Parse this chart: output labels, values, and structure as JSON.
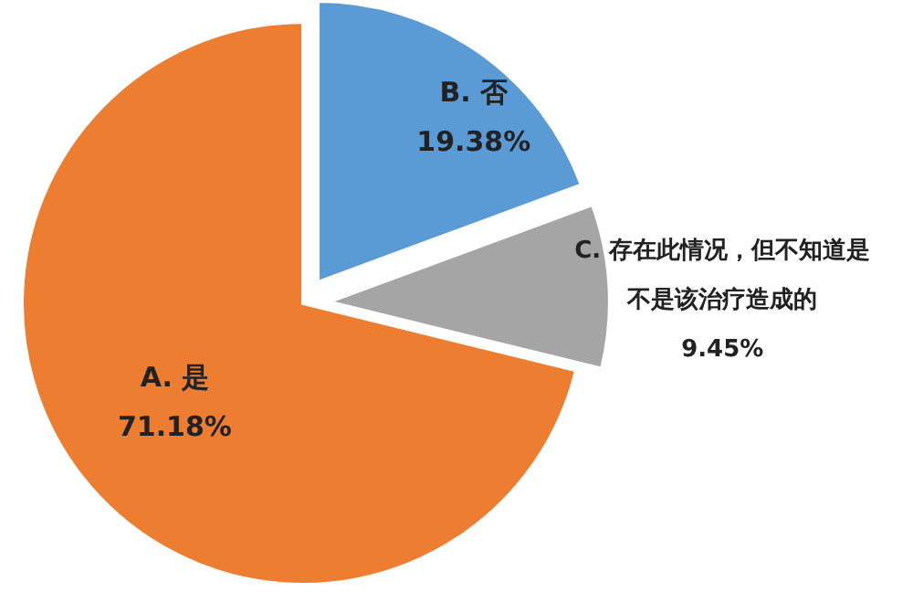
{
  "chart_data": {
    "type": "pie",
    "categories": [
      "A. 是",
      "B. 否",
      "C. 存在此情况，但不知道是不是该治疗造成的"
    ],
    "values": [
      71.18,
      19.38,
      9.45
    ],
    "colors": [
      "#ed7d31",
      "#5b9bd5",
      "#a5a5a5"
    ],
    "value_labels": [
      "71.18%",
      "19.38%",
      "9.45%"
    ]
  }
}
